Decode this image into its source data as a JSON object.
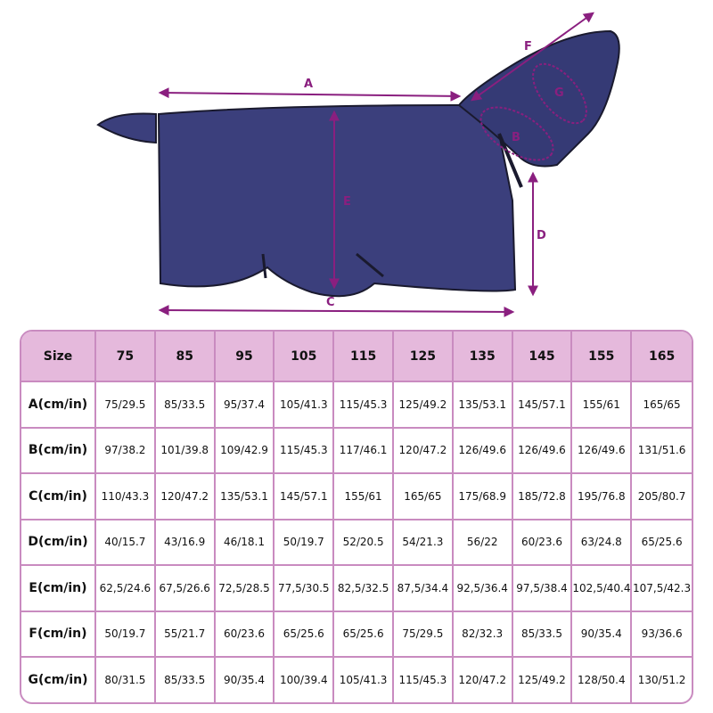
{
  "diagram": {
    "labels": [
      "A",
      "B",
      "C",
      "D",
      "E",
      "F",
      "G"
    ],
    "colors": {
      "blanket": "#3b3f7c",
      "trim": "#1a1a2e",
      "arrow": "#8a1f7f",
      "header_bg": "#e5b9dc",
      "border": "#c98bc0"
    }
  },
  "table": {
    "headers": [
      "Size",
      "75",
      "85",
      "95",
      "105",
      "115",
      "125",
      "135",
      "145",
      "155",
      "165"
    ],
    "rows": [
      {
        "label": "A(cm/in)",
        "values": [
          "75/29.5",
          "85/33.5",
          "95/37.4",
          "105/41.3",
          "115/45.3",
          "125/49.2",
          "135/53.1",
          "145/57.1",
          "155/61",
          "165/65"
        ]
      },
      {
        "label": "B(cm/in)",
        "values": [
          "97/38.2",
          "101/39.8",
          "109/42.9",
          "115/45.3",
          "117/46.1",
          "120/47.2",
          "126/49.6",
          "126/49.6",
          "126/49.6",
          "131/51.6"
        ]
      },
      {
        "label": "C(cm/in)",
        "values": [
          "110/43.3",
          "120/47.2",
          "135/53.1",
          "145/57.1",
          "155/61",
          "165/65",
          "175/68.9",
          "185/72.8",
          "195/76.8",
          "205/80.7"
        ]
      },
      {
        "label": "D(cm/in)",
        "values": [
          "40/15.7",
          "43/16.9",
          "46/18.1",
          "50/19.7",
          "52/20.5",
          "54/21.3",
          "56/22",
          "60/23.6",
          "63/24.8",
          "65/25.6"
        ]
      },
      {
        "label": "E(cm/in)",
        "values": [
          "62,5/24.6",
          "67,5/26.6",
          "72,5/28.5",
          "77,5/30.5",
          "82,5/32.5",
          "87,5/34.4",
          "92,5/36.4",
          "97,5/38.4",
          "102,5/40.4",
          "107,5/42.3"
        ]
      },
      {
        "label": "F(cm/in)",
        "values": [
          "50/19.7",
          "55/21.7",
          "60/23.6",
          "65/25.6",
          "65/25.6",
          "75/29.5",
          "82/32.3",
          "85/33.5",
          "90/35.4",
          "93/36.6"
        ]
      },
      {
        "label": "G(cm/in)",
        "values": [
          "80/31.5",
          "85/33.5",
          "90/35.4",
          "100/39.4",
          "105/41.3",
          "115/45.3",
          "120/47.2",
          "125/49.2",
          "128/50.4",
          "130/51.2"
        ]
      }
    ]
  }
}
